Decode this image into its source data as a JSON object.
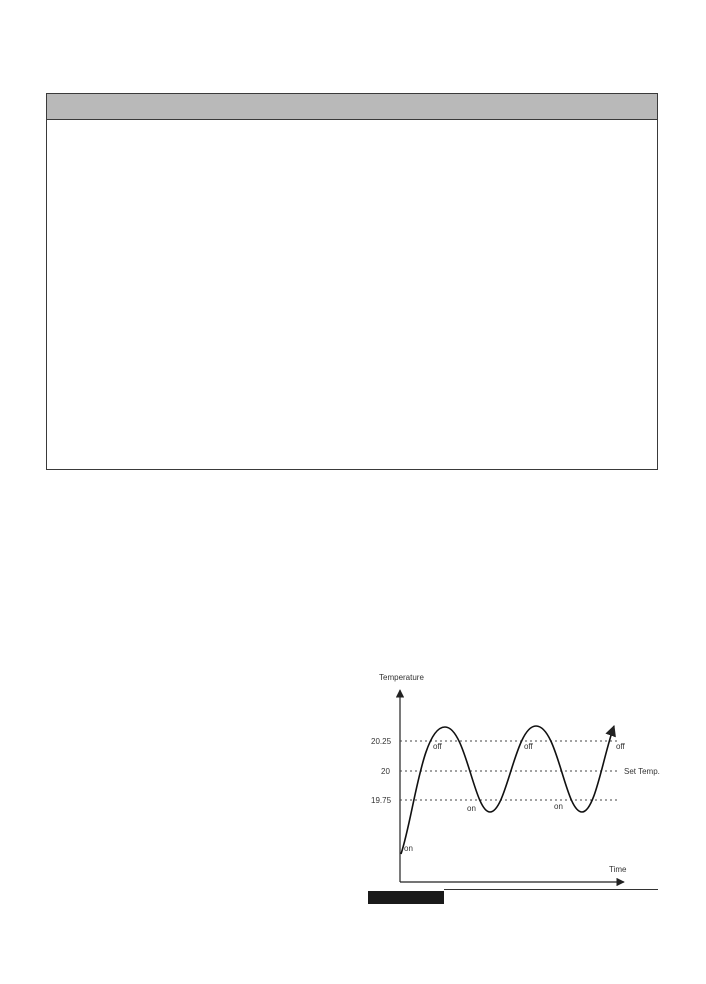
{
  "chart_data": {
    "type": "line",
    "ylabel": "Temperature",
    "xlabel": "Time",
    "y_tick_labels": [
      "20.25",
      "20",
      "19.75"
    ],
    "reference_lines": [
      {
        "value": 20.25,
        "label": "off"
      },
      {
        "value": 20.0,
        "label": "Set Temp."
      },
      {
        "value": 19.75,
        "label": ""
      }
    ],
    "annotations": {
      "start": "on",
      "peak1": "off",
      "trough1": "on",
      "peak2": "off",
      "trough2": "on"
    },
    "series": [
      {
        "values": [
          19.55,
          20.0,
          20.25,
          20.38,
          20.25,
          20.0,
          19.75,
          19.62,
          19.75,
          20.0,
          20.25,
          20.38,
          20.25,
          20.0,
          19.75,
          19.62,
          19.75,
          20.0,
          20.25,
          20.38
        ]
      }
    ]
  }
}
